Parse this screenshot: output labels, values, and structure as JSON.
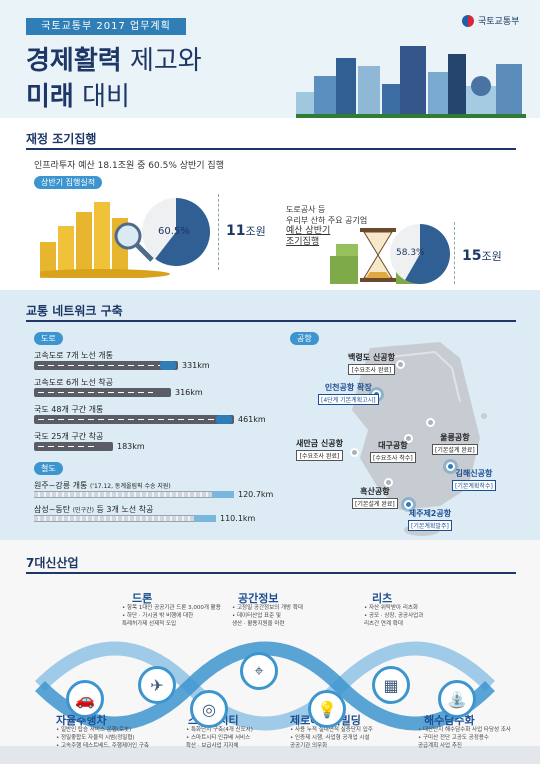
{
  "header": {
    "badge": "국토교통부 2017 업무계획",
    "title_bold1": "경제활력",
    "title_light1": " 제고와",
    "title_bold2": "미래",
    "title_light2": " 대비",
    "ministry": "국토교통부",
    "logo_icon": "taegeuk-icon"
  },
  "section1": {
    "title": "재정 조기집행",
    "lead": "인프라투자 예산 18.1조원 중 60.5% 상반기 집행",
    "pill": "상반기 집행실적",
    "left": {
      "percent": "60.5%",
      "percent_value": 60.5,
      "amount_num": "11",
      "amount_unit": "조원"
    },
    "right": {
      "line1": "도로공사 등",
      "line2": "우리부 산하 주요 공기업",
      "line3": "예산 상반기",
      "line4": "조기집행",
      "percent": "58.3%",
      "percent_value": 58.3,
      "amount_num": "15",
      "amount_unit": "조원"
    }
  },
  "section2": {
    "title": "교통 네트워크 구축",
    "road_pill": "도로",
    "rail_pill": "철도",
    "airport_pill": "공항",
    "roads": [
      {
        "label": "고속도로 7개 노선 개통",
        "km": "331km",
        "value": 331,
        "car": "#2f7eb5"
      },
      {
        "label": "고속도로 6개 노선 착공",
        "km": "316km",
        "value": 316,
        "car": "#5a5d66"
      },
      {
        "label": "국도 48개 구간 개통",
        "km": "461km",
        "value": 461,
        "car": "#2f7eb5"
      },
      {
        "label": "국도 25개 구간 착공",
        "km": "183km",
        "value": 183,
        "car": "#5a5d66"
      }
    ],
    "rails": [
      {
        "label": "원주~강릉 개통",
        "note": "('17.12, 동계올림픽 수송 지원)",
        "km": "120.7km",
        "value": 120.7
      },
      {
        "label": "삼성~동탄",
        "note": "(민구간)",
        "label2": "등 3개 노선 착공",
        "km": "110.1km",
        "value": 110.1
      }
    ],
    "airports": [
      {
        "name": "백령도 신공항",
        "status": "[수요조사 완료]",
        "hl": false
      },
      {
        "name": "인천공항 확장",
        "status": "[4단계 기본계획고시]",
        "hl": true
      },
      {
        "name": "새만금 신공항",
        "status": "[수요조사 완료]",
        "hl": false
      },
      {
        "name": "대구공항",
        "status": "[수요조사 착수]",
        "hl": false
      },
      {
        "name": "울릉공항",
        "status": "[기본설계 완료]",
        "hl": false
      },
      {
        "name": "김해신공항",
        "status": "[기본계획착수]",
        "hl": true
      },
      {
        "name": "흑산공항",
        "status": "[기본설계 완료]",
        "hl": false
      },
      {
        "name": "제주제2공항",
        "status": "[기본계획발주]",
        "hl": true
      }
    ]
  },
  "section3": {
    "title": "7대신산업",
    "industries": [
      {
        "name": "드론",
        "desc1": "• 항목 1대인 공공기관 드론 3,000개 활용",
        "desc2": "• 하단 · 가시권 밖 비행에 대한",
        "desc3": "  특례허가제 선제적 도입",
        "icon": "drone-icon",
        "glyph": "✈"
      },
      {
        "name": "공간정보",
        "desc1": "• 고정밀 공간정보의 개방 확대",
        "desc2": "• 데이터산업 표준 및",
        "desc3": "  생산 · 활용지원을 마련",
        "icon": "map-pin-icon",
        "glyph": "⌖"
      },
      {
        "name": "리츠",
        "desc1": "• 자산 위탁받아 리츠화",
        "desc2": "• 공모 · 상장, 공공사업과",
        "desc3": "  리츠간 연계 확대",
        "icon": "building-icon",
        "glyph": "▦"
      },
      {
        "name": "자율주행차",
        "desc1": "• 일반인 탑승 서비스 운행(로봇)",
        "desc2": "• 정밀좋합도 자율적 시범(정밀협)",
        "desc3": "• 고속주행 테스트베드, 주행제어인 구축",
        "icon": "car-icon",
        "glyph": "🚗"
      },
      {
        "name": "스마트시티",
        "desc1": "• 특화단지 구축(4개 신도시)",
        "desc2": "• 스마트시티 인큐베 서비스",
        "desc3": "  확산 · 보급사업 지자체",
        "icon": "camera-icon",
        "glyph": "◎"
      },
      {
        "name": "제로에너지빌딩",
        "desc1": "• 사용 누적 절대면적 실증단지 입주",
        "desc2": "• 인증제 시행, 사업형 공개업 시설",
        "desc3": "  공공기관 의무화",
        "icon": "bulb-icon",
        "glyph": "💡"
      },
      {
        "name": "해수담수화",
        "desc1": "• 대산단지 해수담수화 사업 타당성 조사",
        "desc2": "• 구미산 전단 고공도 공정용수",
        "desc3": "  공급계획 사업 추진",
        "icon": "faucet-icon",
        "glyph": "⛲"
      }
    ]
  }
}
